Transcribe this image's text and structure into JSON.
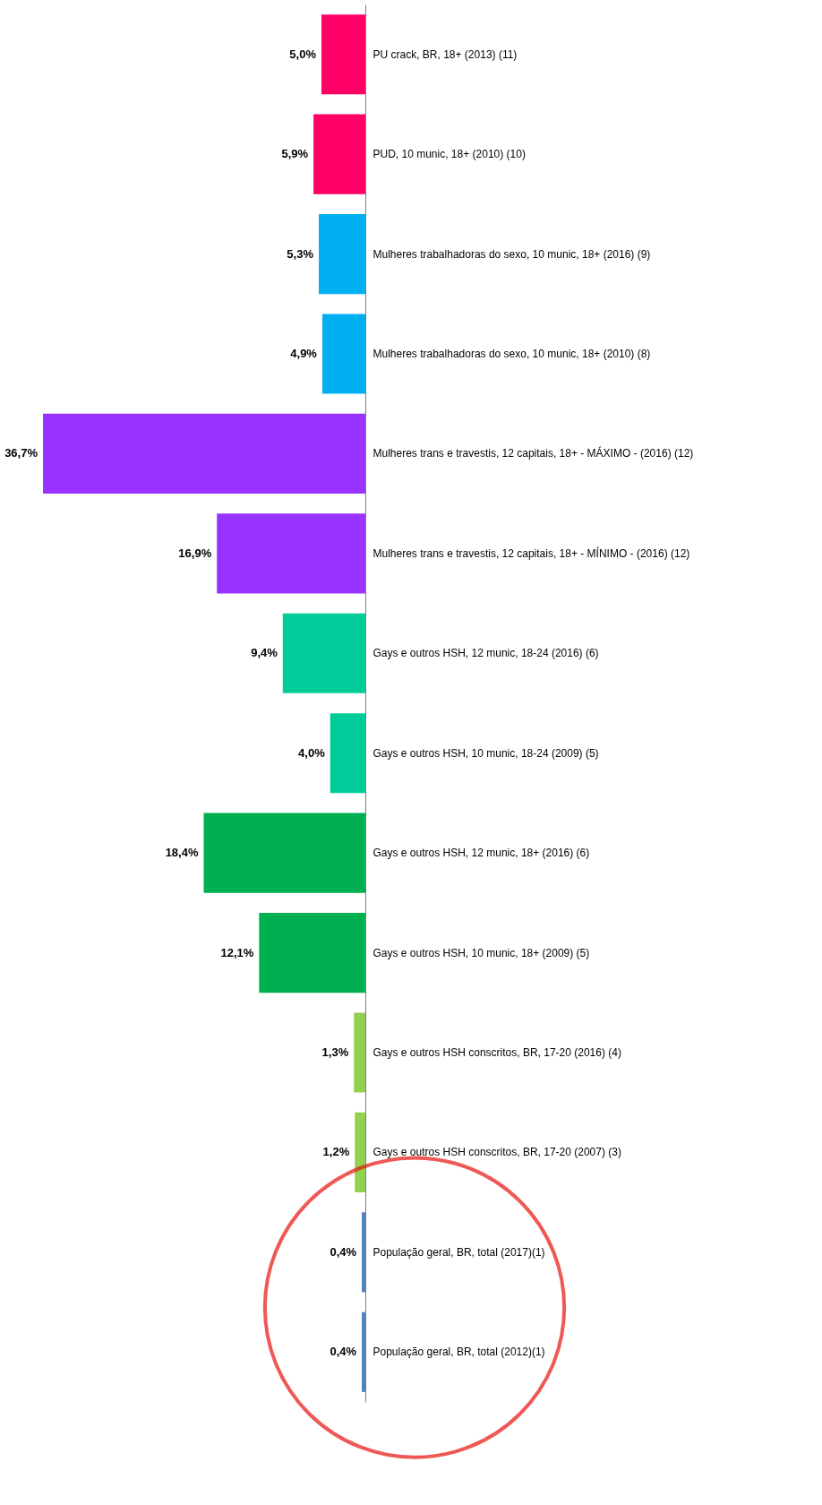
{
  "chart_data": {
    "type": "bar",
    "orientation": "horizontal",
    "categories": [
      "PU crack, BR, 18+ (2013) (11)",
      "PUD, 10 munic, 18+ (2010) (10)",
      "Mulheres trabalhadoras do sexo, 10 munic, 18+ (2016) (9)",
      "Mulheres trabalhadoras do sexo, 10 munic, 18+ (2010) (8)",
      "Mulheres trans e travestis, 12 capitais, 18+ - MÁXIMO - (2016) (12)",
      "Mulheres trans e travestis, 12 capitais, 18+ - MÍNIMO - (2016) (12)",
      "Gays e outros HSH, 12 munic, 18-24 (2016) (6)",
      "Gays e outros HSH, 10 munic, 18-24 (2009) (5)",
      "Gays e outros HSH, 12 munic, 18+ (2016) (6)",
      "Gays e outros HSH, 10 munic, 18+ (2009) (5)",
      "Gays e outros HSH conscritos, BR, 17-20 (2016) (4)",
      "Gays e outros HSH conscritos, BR, 17-20 (2007) (3)",
      "População geral, BR, total (2017)(1)",
      "População geral, BR, total (2012)(1)"
    ],
    "values": [
      5.0,
      5.9,
      5.3,
      4.9,
      36.7,
      16.9,
      9.4,
      4.0,
      18.4,
      12.1,
      1.3,
      1.2,
      0.4,
      0.4
    ],
    "value_labels": [
      "5,0%",
      "5,9%",
      "5,3%",
      "4,9%",
      "36,7%",
      "16,9%",
      "9,4%",
      "4,0%",
      "18,4%",
      "12,1%",
      "1,3%",
      "1,2%",
      "0,4%",
      "0,4%"
    ],
    "colors": [
      "#ff0066",
      "#ff0066",
      "#00b0f0",
      "#00b0f0",
      "#9933ff",
      "#9933ff",
      "#00cc99",
      "#00cc99",
      "#00b050",
      "#00b050",
      "#92d050",
      "#92d050",
      "#4f81bd",
      "#4f81bd"
    ]
  }
}
